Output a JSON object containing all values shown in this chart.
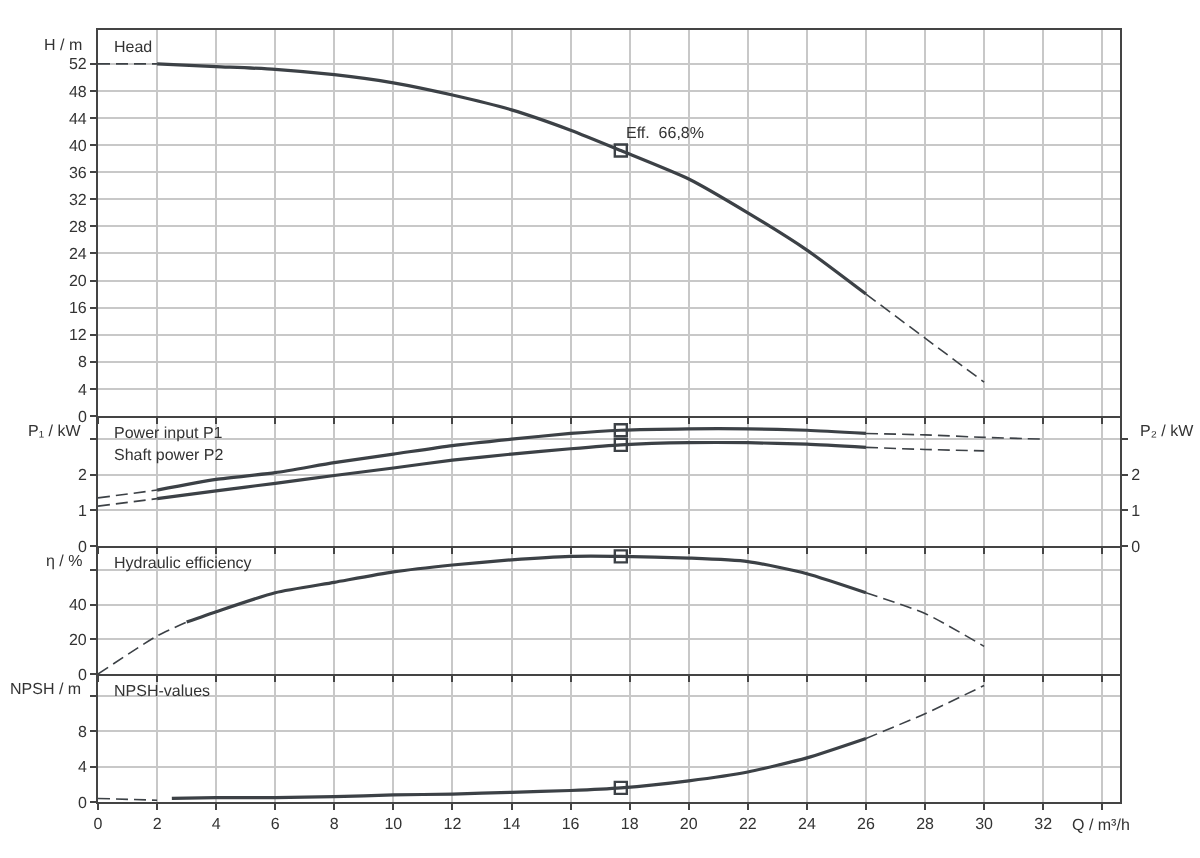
{
  "chart_data": [
    {
      "type": "line",
      "ylabel": "H / m",
      "annotations": [
        "Head",
        {
          "text": "Eff.  66,8%",
          "x": 17.7,
          "y": 39.2
        }
      ],
      "xlim": [
        0,
        34.6
      ],
      "xticks": [
        0,
        2,
        4,
        6,
        8,
        10,
        12,
        14,
        16,
        18,
        20,
        22,
        24,
        26,
        28,
        30,
        32,
        34
      ],
      "ylim": [
        0,
        57
      ],
      "yticks": [
        0,
        4,
        8,
        12,
        16,
        20,
        24,
        28,
        32,
        36,
        40,
        44,
        48,
        52
      ],
      "grid": true,
      "tick_labels": "y",
      "series": [
        {
          "color": "#3c4146",
          "line_style": "dashed",
          "x": [
            0,
            2
          ],
          "values": [
            52,
            52
          ]
        },
        {
          "color": "#3c4146",
          "line_style": "solid",
          "x": [
            2,
            4,
            6,
            8,
            10,
            12,
            14,
            16,
            17.7,
            20,
            22,
            24,
            26
          ],
          "values": [
            52,
            51.6,
            51.2,
            50.4,
            49.2,
            47.4,
            45.2,
            42.2,
            39.2,
            35,
            30,
            24.5,
            18
          ]
        },
        {
          "color": "#3c4146",
          "line_style": "dashed",
          "x": [
            26,
            28,
            30
          ],
          "values": [
            18,
            11.5,
            5
          ]
        },
        {
          "type": "scatter",
          "marker": "square",
          "color": "#3c4146",
          "x": [
            17.7
          ],
          "values": [
            39.2
          ]
        }
      ]
    },
    {
      "type": "line",
      "ylabel": "P₁ / kW",
      "y2label": "P₂ / kW",
      "annotations": [
        "Power input P1",
        "Shaft power P2"
      ],
      "xlim": [
        0,
        34.6
      ],
      "xticks": [
        0,
        2,
        4,
        6,
        8,
        10,
        12,
        14,
        16,
        18,
        20,
        22,
        24,
        26,
        28,
        30,
        32,
        34
      ],
      "ylim": [
        0,
        3.65
      ],
      "yticks": [
        0,
        1,
        2,
        {
          "value": 3,
          "label": null
        }
      ],
      "y2lim": [
        0,
        3.65
      ],
      "y2ticks": [
        0,
        1,
        2,
        {
          "value": 3,
          "label": null
        }
      ],
      "grid": true,
      "tick_labels": "y",
      "series": [
        {
          "color": "#3c4146",
          "line_style": "dashed",
          "x": [
            0,
            2
          ],
          "values": [
            1.35,
            1.57
          ]
        },
        {
          "color": "#3c4146",
          "line_style": "solid",
          "x": [
            2,
            4,
            6,
            8,
            10,
            12,
            14,
            16,
            17.7,
            20,
            22,
            24,
            26
          ],
          "values": [
            1.57,
            1.87,
            2.06,
            2.34,
            2.58,
            2.82,
            3.0,
            3.16,
            3.25,
            3.29,
            3.29,
            3.25,
            3.16
          ]
        },
        {
          "color": "#3c4146",
          "line_style": "dashed",
          "x": [
            26,
            28,
            30,
            32
          ],
          "values": [
            3.16,
            3.12,
            3.05,
            3.0
          ]
        },
        {
          "type": "scatter",
          "marker": "square",
          "color": "#3c4146",
          "x": [
            17.7
          ],
          "values": [
            3.25
          ]
        },
        {
          "axis": "y2",
          "color": "#3c4146",
          "line_style": "dashed",
          "x": [
            0,
            2
          ],
          "values": [
            1.12,
            1.33
          ]
        },
        {
          "axis": "y2",
          "color": "#3c4146",
          "line_style": "solid",
          "x": [
            2,
            4,
            6,
            8,
            10,
            12,
            14,
            16,
            17.7,
            20,
            22,
            24,
            26
          ],
          "values": [
            1.33,
            1.55,
            1.76,
            1.98,
            2.19,
            2.41,
            2.58,
            2.73,
            2.84,
            2.9,
            2.9,
            2.86,
            2.77
          ]
        },
        {
          "axis": "y2",
          "color": "#3c4146",
          "line_style": "dashed",
          "x": [
            26,
            28,
            30
          ],
          "values": [
            2.77,
            2.71,
            2.67
          ]
        },
        {
          "axis": "y2",
          "type": "scatter",
          "marker": "square",
          "color": "#3c4146",
          "x": [
            17.7
          ],
          "values": [
            2.84
          ]
        }
      ]
    },
    {
      "type": "line",
      "ylabel": "η / %",
      "annotations": [
        "Hydraulic efficiency"
      ],
      "xlim": [
        0,
        34.6
      ],
      "xticks": [
        0,
        2,
        4,
        6,
        8,
        10,
        12,
        14,
        16,
        18,
        20,
        22,
        24,
        26,
        28,
        30,
        32,
        34
      ],
      "ylim": [
        0,
        74
      ],
      "yticks": [
        0,
        20,
        40,
        {
          "value": 60,
          "label": null
        }
      ],
      "grid": true,
      "tick_labels": "y",
      "series": [
        {
          "color": "#3c4146",
          "line_style": "dashed",
          "x": [
            0,
            2,
            3
          ],
          "values": [
            0,
            22,
            30
          ]
        },
        {
          "color": "#3c4146",
          "line_style": "solid",
          "x": [
            3,
            4,
            6,
            8,
            10,
            12,
            14,
            16,
            17.7,
            20,
            22,
            24,
            26
          ],
          "values": [
            30,
            36,
            47,
            53,
            59,
            63,
            66,
            68,
            68,
            67,
            65,
            58,
            47
          ]
        },
        {
          "color": "#3c4146",
          "line_style": "dashed",
          "x": [
            26,
            28,
            30
          ],
          "values": [
            47,
            35,
            16
          ]
        },
        {
          "type": "scatter",
          "marker": "square",
          "color": "#3c4146",
          "x": [
            17.7
          ],
          "values": [
            68
          ]
        }
      ]
    },
    {
      "type": "line",
      "ylabel": "NPSH / m",
      "xlabel": "Q / m³/h",
      "annotations": [
        "NPSH-values"
      ],
      "xlim": [
        0,
        34.6
      ],
      "xticks": [
        0,
        2,
        4,
        6,
        8,
        10,
        12,
        14,
        16,
        18,
        20,
        22,
        24,
        26,
        28,
        30,
        32,
        {
          "value": 34,
          "label": null
        }
      ],
      "ylim": [
        0,
        14.5
      ],
      "yticks": [
        0,
        4,
        8,
        {
          "value": 12,
          "label": null
        }
      ],
      "grid": true,
      "series": [
        {
          "color": "#3c4146",
          "line_style": "dashed",
          "x": [
            0,
            2
          ],
          "values": [
            0.4,
            0.2
          ]
        },
        {
          "color": "#3c4146",
          "line_style": "solid",
          "x": [
            2.5,
            4,
            6,
            8,
            10,
            12,
            14,
            16,
            17.7,
            20,
            22,
            24,
            26
          ],
          "values": [
            0.4,
            0.5,
            0.5,
            0.6,
            0.8,
            0.9,
            1.1,
            1.3,
            1.6,
            2.4,
            3.4,
            5,
            7.2
          ]
        },
        {
          "color": "#3c4146",
          "line_style": "dashed",
          "x": [
            26,
            28,
            30
          ],
          "values": [
            7.2,
            10,
            13.2
          ]
        },
        {
          "type": "scatter",
          "marker": "square",
          "color": "#3c4146",
          "x": [
            17.7
          ],
          "values": [
            1.6
          ]
        }
      ]
    }
  ]
}
